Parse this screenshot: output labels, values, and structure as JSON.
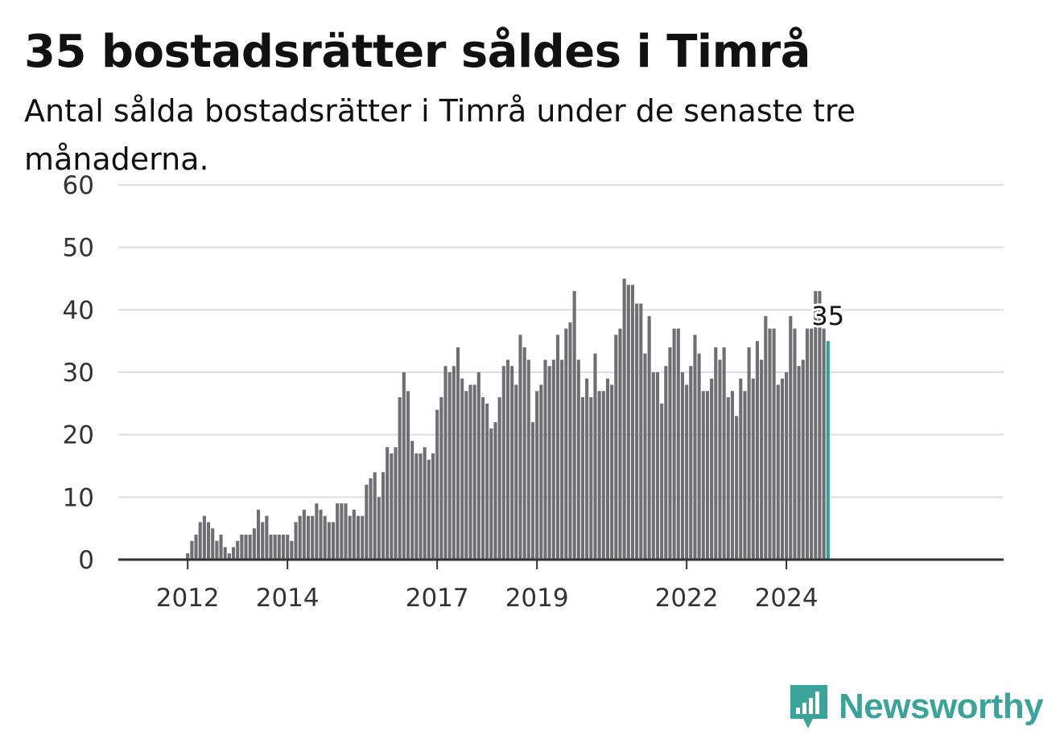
{
  "title": "35 bostadsrätter såldes i Timrå",
  "subtitle": "Antal sålda bostadsrätter i Timrå under de senaste tre månaderna.",
  "brand": {
    "name": "Newsworthy",
    "color": "#3aa39a",
    "icon": "bar-chart-badge-icon"
  },
  "chart_data": {
    "type": "bar",
    "title": "35 bostadsrätter såldes i Timrå",
    "subtitle": "Antal sålda bostadsrätter i Timrå under de senaste tre månaderna.",
    "xlabel": "",
    "ylabel": "",
    "ylim": [
      0,
      60
    ],
    "yticks": [
      0,
      10,
      20,
      30,
      40,
      50,
      60
    ],
    "xticks": [
      "2012",
      "2014",
      "2017",
      "2019",
      "2022",
      "2024"
    ],
    "grid": true,
    "start": "2011-06",
    "end": "2024-12",
    "values": [
      0,
      0,
      0,
      0,
      0,
      0,
      0,
      1,
      3,
      4,
      6,
      7,
      6,
      5,
      3,
      4,
      2,
      1,
      2,
      3,
      4,
      4,
      4,
      5,
      8,
      6,
      7,
      4,
      4,
      4,
      4,
      4,
      3,
      6,
      7,
      8,
      7,
      7,
      9,
      8,
      7,
      6,
      6,
      9,
      9,
      9,
      7,
      8,
      7,
      7,
      12,
      13,
      14,
      10,
      14,
      18,
      17,
      18,
      26,
      30,
      27,
      19,
      17,
      17,
      18,
      16,
      17,
      24,
      26,
      31,
      30,
      31,
      34,
      29,
      27,
      28,
      28,
      30,
      26,
      25,
      21,
      22,
      26,
      31,
      32,
      31,
      28,
      36,
      34,
      32,
      22,
      27,
      28,
      32,
      31,
      32,
      36,
      32,
      37,
      38,
      43,
      32,
      26,
      29,
      26,
      33,
      27,
      27,
      29,
      28,
      36,
      37,
      45,
      44,
      44,
      41,
      41,
      33,
      39,
      30,
      30,
      25,
      31,
      34,
      37,
      37,
      30,
      28,
      31,
      36,
      33,
      27,
      27,
      29,
      34,
      32,
      34,
      26,
      27,
      23,
      29,
      27,
      34,
      29,
      35,
      32,
      39,
      37,
      37,
      28,
      29,
      30,
      39,
      37,
      31,
      32,
      37,
      37,
      43,
      43,
      37,
      35
    ],
    "highlight": {
      "label": "35",
      "value": 35,
      "color": "#26a69a"
    },
    "bar_color": "#6e6e73",
    "grid_color": "#dddddd",
    "axis_color": "#333333"
  }
}
